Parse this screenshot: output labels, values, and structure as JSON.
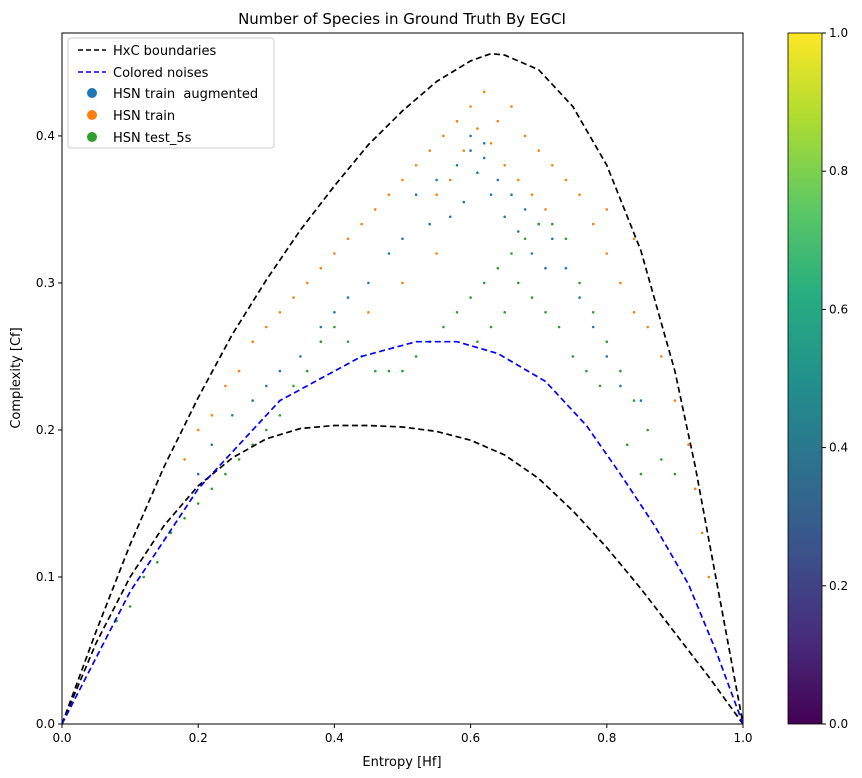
{
  "chart_data": {
    "type": "scatter",
    "title": "Number of Species in Ground Truth By EGCI",
    "xlabel": "Entropy [Hf]",
    "ylabel": "Complexity [Cf]",
    "xlim": [
      0.0,
      1.0
    ],
    "ylim": [
      0.0,
      0.47
    ],
    "x_ticks": [
      "0.0",
      "0.2",
      "0.4",
      "0.6",
      "0.8",
      "1.0"
    ],
    "y_ticks": [
      "0.0",
      "0.1",
      "0.2",
      "0.3",
      "0.4"
    ],
    "grid": false,
    "legend_position": "upper left",
    "lines": [
      {
        "name": "HxC boundaries",
        "color": "#000000",
        "style": "dashed",
        "x": [
          0.0,
          0.05,
          0.1,
          0.15,
          0.2,
          0.25,
          0.3,
          0.35,
          0.4,
          0.45,
          0.5,
          0.55,
          0.6,
          0.63,
          0.65,
          0.7,
          0.75,
          0.8,
          0.85,
          0.9,
          0.93,
          0.95,
          0.97,
          0.99,
          1.0
        ],
        "y": [
          0.0,
          0.063,
          0.122,
          0.175,
          0.222,
          0.265,
          0.302,
          0.336,
          0.366,
          0.394,
          0.417,
          0.437,
          0.451,
          0.456,
          0.455,
          0.445,
          0.42,
          0.38,
          0.322,
          0.24,
          0.175,
          0.125,
          0.075,
          0.025,
          0.0
        ]
      },
      {
        "name": "",
        "color": "#000000",
        "style": "dashed",
        "x": [
          0.0,
          0.05,
          0.1,
          0.15,
          0.2,
          0.25,
          0.3,
          0.35,
          0.4,
          0.45,
          0.5,
          0.55,
          0.6,
          0.65,
          0.7,
          0.75,
          0.8,
          0.85,
          0.9,
          0.95,
          1.0
        ],
        "y": [
          0.0,
          0.055,
          0.1,
          0.135,
          0.162,
          0.181,
          0.194,
          0.201,
          0.203,
          0.203,
          0.202,
          0.199,
          0.193,
          0.183,
          0.167,
          0.145,
          0.12,
          0.092,
          0.062,
          0.032,
          0.0
        ]
      },
      {
        "name": "Colored noises",
        "color": "#0000ff",
        "style": "dashed",
        "x": [
          0.0,
          0.1,
          0.2,
          0.32,
          0.44,
          0.52,
          0.58,
          0.64,
          0.71,
          0.77,
          0.82,
          0.87,
          0.92,
          0.96,
          1.0
        ],
        "y": [
          0.0,
          0.09,
          0.16,
          0.22,
          0.25,
          0.26,
          0.26,
          0.252,
          0.233,
          0.203,
          0.17,
          0.135,
          0.095,
          0.05,
          0.0
        ]
      }
    ],
    "scatter_series": [
      {
        "name": "HSN train  augmented",
        "color": "#1f77b4"
      },
      {
        "name": "HSN train",
        "color": "#ff7f0e"
      },
      {
        "name": "HSN test_5s",
        "color": "#2ca02c"
      }
    ],
    "scatter_points": {
      "HSN train  augmented": [
        [
          0.6,
          0.39
        ],
        [
          0.62,
          0.385
        ],
        [
          0.64,
          0.37
        ],
        [
          0.58,
          0.38
        ],
        [
          0.66,
          0.36
        ],
        [
          0.68,
          0.35
        ],
        [
          0.7,
          0.34
        ],
        [
          0.55,
          0.37
        ],
        [
          0.52,
          0.36
        ],
        [
          0.72,
          0.33
        ],
        [
          0.5,
          0.33
        ],
        [
          0.48,
          0.32
        ],
        [
          0.45,
          0.3
        ],
        [
          0.42,
          0.29
        ],
        [
          0.4,
          0.28
        ],
        [
          0.38,
          0.27
        ],
        [
          0.35,
          0.25
        ],
        [
          0.32,
          0.24
        ],
        [
          0.3,
          0.23
        ],
        [
          0.28,
          0.22
        ],
        [
          0.25,
          0.21
        ],
        [
          0.22,
          0.19
        ],
        [
          0.2,
          0.17
        ],
        [
          0.74,
          0.31
        ],
        [
          0.76,
          0.29
        ],
        [
          0.78,
          0.27
        ],
        [
          0.8,
          0.25
        ],
        [
          0.82,
          0.23
        ],
        [
          0.85,
          0.22
        ],
        [
          0.61,
          0.375
        ],
        [
          0.63,
          0.36
        ],
        [
          0.65,
          0.345
        ],
        [
          0.67,
          0.335
        ],
        [
          0.59,
          0.355
        ],
        [
          0.57,
          0.345
        ],
        [
          0.54,
          0.34
        ],
        [
          0.69,
          0.32
        ],
        [
          0.71,
          0.31
        ],
        [
          0.6,
          0.4
        ],
        [
          0.62,
          0.395
        ]
      ],
      "HSN train": [
        [
          0.6,
          0.42
        ],
        [
          0.62,
          0.43
        ],
        [
          0.64,
          0.41
        ],
        [
          0.58,
          0.41
        ],
        [
          0.66,
          0.42
        ],
        [
          0.68,
          0.4
        ],
        [
          0.7,
          0.39
        ],
        [
          0.72,
          0.38
        ],
        [
          0.56,
          0.4
        ],
        [
          0.54,
          0.39
        ],
        [
          0.52,
          0.38
        ],
        [
          0.5,
          0.37
        ],
        [
          0.48,
          0.36
        ],
        [
          0.46,
          0.35
        ],
        [
          0.44,
          0.34
        ],
        [
          0.42,
          0.33
        ],
        [
          0.4,
          0.32
        ],
        [
          0.38,
          0.31
        ],
        [
          0.36,
          0.3
        ],
        [
          0.34,
          0.29
        ],
        [
          0.32,
          0.28
        ],
        [
          0.3,
          0.27
        ],
        [
          0.28,
          0.26
        ],
        [
          0.26,
          0.24
        ],
        [
          0.24,
          0.23
        ],
        [
          0.22,
          0.21
        ],
        [
          0.2,
          0.2
        ],
        [
          0.18,
          0.18
        ],
        [
          0.74,
          0.37
        ],
        [
          0.76,
          0.36
        ],
        [
          0.78,
          0.34
        ],
        [
          0.8,
          0.32
        ],
        [
          0.82,
          0.3
        ],
        [
          0.84,
          0.28
        ],
        [
          0.86,
          0.27
        ],
        [
          0.88,
          0.25
        ],
        [
          0.9,
          0.22
        ],
        [
          0.92,
          0.19
        ],
        [
          0.93,
          0.16
        ],
        [
          0.94,
          0.13
        ],
        [
          0.95,
          0.1
        ],
        [
          0.61,
          0.405
        ],
        [
          0.63,
          0.395
        ],
        [
          0.65,
          0.38
        ],
        [
          0.67,
          0.37
        ],
        [
          0.59,
          0.39
        ],
        [
          0.57,
          0.37
        ],
        [
          0.55,
          0.36
        ],
        [
          0.69,
          0.36
        ],
        [
          0.71,
          0.35
        ],
        [
          0.45,
          0.28
        ],
        [
          0.5,
          0.3
        ],
        [
          0.55,
          0.32
        ],
        [
          0.8,
          0.35
        ],
        [
          0.84,
          0.33
        ]
      ],
      "HSN test_5s": [
        [
          0.7,
          0.34
        ],
        [
          0.72,
          0.34
        ],
        [
          0.74,
          0.33
        ],
        [
          0.68,
          0.33
        ],
        [
          0.66,
          0.32
        ],
        [
          0.64,
          0.31
        ],
        [
          0.62,
          0.3
        ],
        [
          0.76,
          0.3
        ],
        [
          0.78,
          0.28
        ],
        [
          0.8,
          0.26
        ],
        [
          0.82,
          0.24
        ],
        [
          0.84,
          0.22
        ],
        [
          0.86,
          0.2
        ],
        [
          0.88,
          0.18
        ],
        [
          0.9,
          0.17
        ],
        [
          0.6,
          0.29
        ],
        [
          0.58,
          0.28
        ],
        [
          0.56,
          0.27
        ],
        [
          0.54,
          0.26
        ],
        [
          0.52,
          0.25
        ],
        [
          0.5,
          0.24
        ],
        [
          0.48,
          0.24
        ],
        [
          0.46,
          0.24
        ],
        [
          0.44,
          0.25
        ],
        [
          0.42,
          0.26
        ],
        [
          0.4,
          0.27
        ],
        [
          0.38,
          0.26
        ],
        [
          0.36,
          0.24
        ],
        [
          0.34,
          0.23
        ],
        [
          0.32,
          0.21
        ],
        [
          0.3,
          0.2
        ],
        [
          0.28,
          0.19
        ],
        [
          0.26,
          0.18
        ],
        [
          0.24,
          0.17
        ],
        [
          0.22,
          0.16
        ],
        [
          0.2,
          0.15
        ],
        [
          0.18,
          0.14
        ],
        [
          0.16,
          0.13
        ],
        [
          0.14,
          0.11
        ],
        [
          0.12,
          0.1
        ],
        [
          0.1,
          0.08
        ],
        [
          0.08,
          0.07
        ],
        [
          0.75,
          0.25
        ],
        [
          0.77,
          0.24
        ],
        [
          0.79,
          0.23
        ],
        [
          0.73,
          0.27
        ],
        [
          0.71,
          0.28
        ],
        [
          0.69,
          0.29
        ],
        [
          0.67,
          0.3
        ],
        [
          0.65,
          0.28
        ],
        [
          0.63,
          0.27
        ],
        [
          0.61,
          0.26
        ],
        [
          0.83,
          0.19
        ],
        [
          0.85,
          0.17
        ]
      ]
    },
    "colorbar": {
      "colormap": "viridis",
      "range": [
        0.0,
        1.0
      ],
      "ticks": [
        "0.0",
        "0.2",
        "0.4",
        "0.6",
        "0.8",
        "1.0"
      ]
    }
  }
}
